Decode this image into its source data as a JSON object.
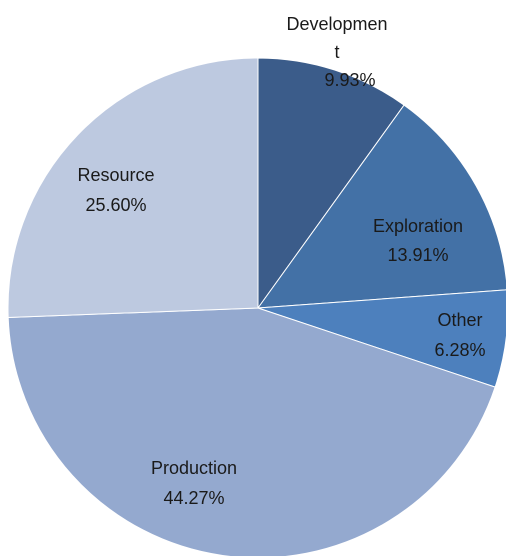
{
  "chart_data": {
    "type": "pie",
    "title": "",
    "legend": "none",
    "start": "12 o'clock, clockwise",
    "slices": [
      {
        "name": "Developmen",
        "name_wrap": "t",
        "value": 9.93,
        "value_label": "9.93%",
        "color": "#3b5c8a"
      },
      {
        "name": "Exploration",
        "value": 13.91,
        "value_label": "13.91%",
        "color": "#4371a6"
      },
      {
        "name": "Other",
        "value": 6.28,
        "value_label": "6.28%",
        "color": "#4d80bd"
      },
      {
        "name": "Production",
        "value": 44.27,
        "value_label": "44.27%",
        "color": "#94a9cf"
      },
      {
        "name": "Resource",
        "value": 25.6,
        "value_label": "25.60%",
        "color": "#bdc9e0"
      }
    ]
  }
}
